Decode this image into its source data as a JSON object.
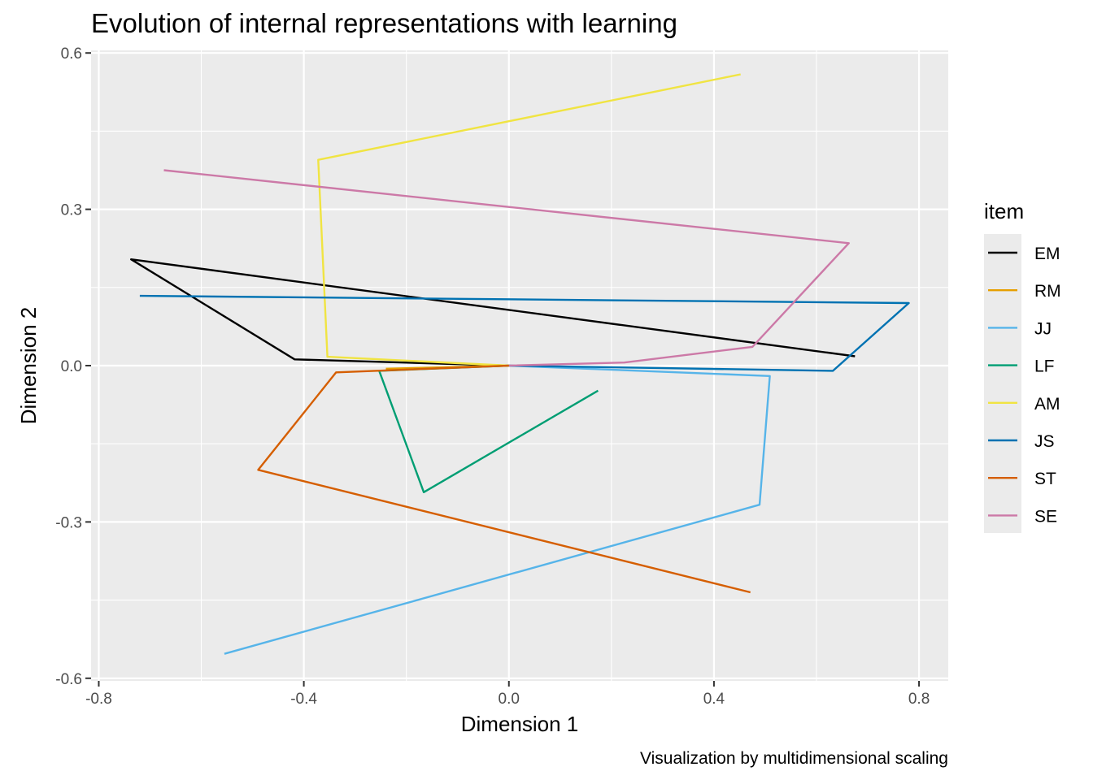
{
  "chart_data": {
    "type": "line",
    "title": "Evolution of internal representations with learning",
    "caption": "Visualization by multidimensional scaling",
    "xlabel": "Dimension 1",
    "ylabel": "Dimension 2",
    "xlim": [
      -0.815,
      0.857
    ],
    "ylim": [
      -0.605,
      0.605
    ],
    "x_ticks": [
      -0.8,
      -0.4,
      0.0,
      0.4,
      0.8
    ],
    "x_tick_labels": [
      "-0.8",
      "-0.4",
      "0.0",
      "0.4",
      "0.8"
    ],
    "y_ticks": [
      -0.6,
      -0.3,
      0.0,
      0.3,
      0.6
    ],
    "y_tick_labels": [
      "-0.6",
      "-0.3",
      "0.0",
      "0.3",
      "0.6"
    ],
    "grid": true,
    "panel_background": "#EBEBEB",
    "legend": {
      "title": "item",
      "position": "right"
    },
    "series": [
      {
        "name": "EM",
        "color": "#000000",
        "points": [
          [
            0.0,
            0.0
          ],
          [
            -0.418,
            0.012
          ],
          [
            -0.737,
            0.204
          ],
          [
            0.675,
            0.018
          ]
        ]
      },
      {
        "name": "RM",
        "color": "#E69F00",
        "points": [
          [
            0.0,
            0.0
          ],
          [
            -0.24,
            -0.006
          ]
        ]
      },
      {
        "name": "JJ",
        "color": "#56B4E9",
        "points": [
          [
            0.0,
            0.0
          ],
          [
            0.509,
            -0.02
          ],
          [
            0.489,
            -0.267
          ],
          [
            -0.555,
            -0.553
          ]
        ]
      },
      {
        "name": "LF",
        "color": "#009E73",
        "points": [
          [
            0.0,
            0.0
          ],
          [
            -0.253,
            -0.01
          ],
          [
            -0.166,
            -0.243
          ],
          [
            0.174,
            -0.048
          ]
        ]
      },
      {
        "name": "AM",
        "color": "#F0E442",
        "points": [
          [
            0.0,
            0.0
          ],
          [
            -0.354,
            0.017
          ],
          [
            -0.372,
            0.395
          ],
          [
            0.452,
            0.559
          ]
        ]
      },
      {
        "name": "JS",
        "color": "#0072B2",
        "points": [
          [
            0.0,
            0.0
          ],
          [
            0.632,
            -0.01
          ],
          [
            0.78,
            0.12
          ],
          [
            -0.72,
            0.134
          ]
        ]
      },
      {
        "name": "ST",
        "color": "#D55E00",
        "points": [
          [
            0.0,
            0.0
          ],
          [
            -0.337,
            -0.013
          ],
          [
            -0.489,
            -0.2
          ],
          [
            0.471,
            -0.435
          ]
        ]
      },
      {
        "name": "SE",
        "color": "#CC79A7",
        "points": [
          [
            0.0,
            0.0
          ],
          [
            0.225,
            0.006
          ],
          [
            0.475,
            0.036
          ],
          [
            0.663,
            0.235
          ],
          [
            -0.673,
            0.375
          ]
        ]
      }
    ]
  }
}
